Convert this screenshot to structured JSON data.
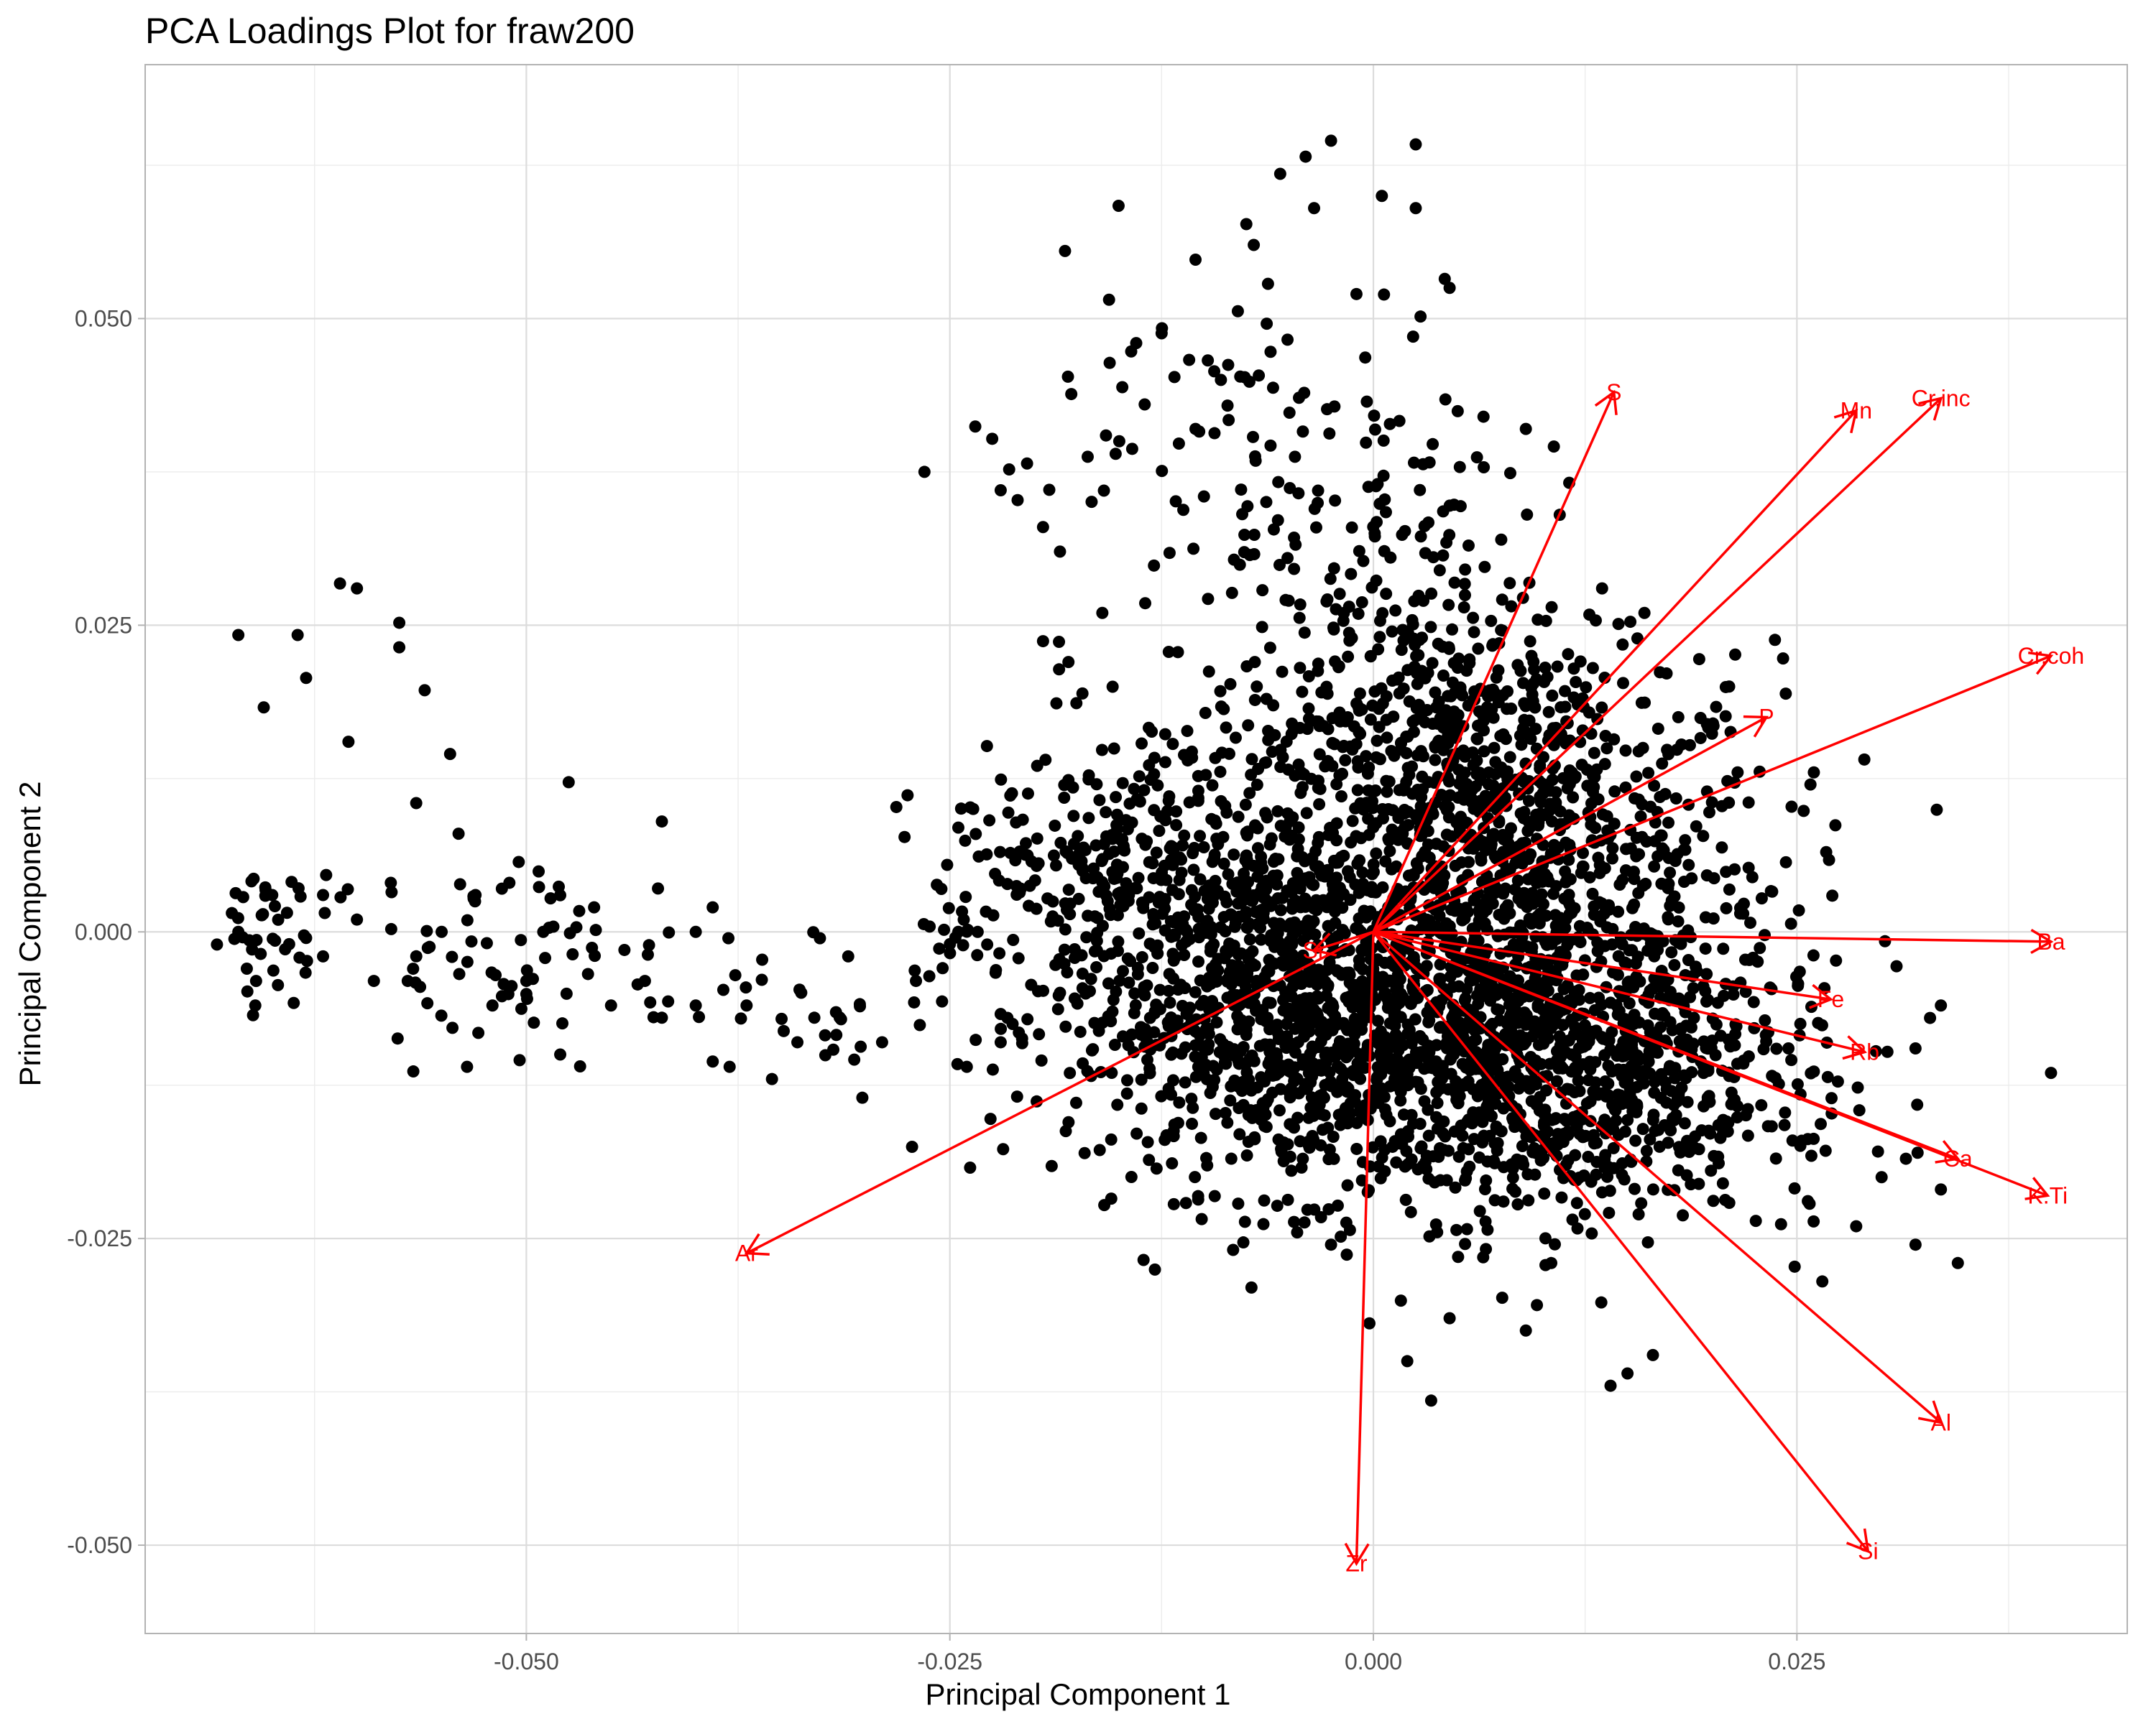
{
  "chart_data": {
    "type": "scatter",
    "title": "PCA Loadings Plot for fraw200",
    "xlabel": "Principal Component 1",
    "ylabel": "Principal Component 2",
    "xlim": [
      -0.0725,
      0.0445
    ],
    "ylim": [
      -0.0572,
      0.0707
    ],
    "x_ticks": [
      -0.05,
      -0.025,
      0.0,
      0.025
    ],
    "x_tick_labels": [
      "-0.050",
      "-0.025",
      "0.000",
      "0.025"
    ],
    "y_ticks": [
      -0.05,
      -0.025,
      0.0,
      0.025,
      0.05
    ],
    "y_tick_labels": [
      "-0.050",
      "-0.025",
      "0.000",
      "0.025",
      "0.050"
    ],
    "grid": true,
    "point_color": "#000000",
    "arrow_color": "#ff0000",
    "points_approx": [
      [
        -0.067,
        0.0242
      ],
      [
        -0.0635,
        0.0242
      ],
      [
        -0.0655,
        0.0183
      ],
      [
        -0.063,
        0.0207
      ],
      [
        -0.061,
        0.0284
      ],
      [
        -0.06,
        0.028
      ],
      [
        -0.0575,
        0.0252
      ],
      [
        -0.0575,
        0.0232
      ],
      [
        -0.056,
        0.0197
      ],
      [
        -0.0545,
        0.0145
      ],
      [
        -0.0605,
        0.0155
      ],
      [
        -0.0565,
        0.0105
      ],
      [
        -0.0475,
        0.0122
      ],
      [
        -0.042,
        0.009
      ],
      [
        -0.0265,
        0.0375
      ],
      [
        -0.0235,
        0.0412
      ],
      [
        -0.0225,
        0.0402
      ],
      [
        -0.0215,
        0.0377
      ],
      [
        -0.022,
        0.036
      ],
      [
        -0.021,
        0.0352
      ],
      [
        -0.0195,
        0.033
      ],
      [
        -0.0185,
        0.031
      ],
      [
        -0.014,
        0.048
      ],
      [
        -0.0125,
        0.0488
      ],
      [
        -0.0105,
        0.0548
      ],
      [
        -0.0075,
        0.0577
      ],
      [
        -0.0055,
        0.0618
      ],
      [
        -0.004,
        0.0632
      ],
      [
        -0.0025,
        0.0645
      ],
      [
        -0.0035,
        0.059
      ],
      [
        0.0005,
        0.06
      ],
      [
        0.0025,
        0.0642
      ],
      [
        0.0045,
        0.0525
      ],
      [
        0.0025,
        0.059
      ],
      [
        -0.001,
        0.052
      ],
      [
        -0.008,
        0.0506
      ],
      [
        -0.0135,
        0.043
      ],
      [
        -0.015,
        0.04
      ],
      [
        -0.0105,
        0.041
      ],
      [
        -0.009,
        0.045
      ],
      [
        -0.0195,
        0.0237
      ],
      [
        -0.018,
        0.022
      ],
      [
        -0.016,
        0.026
      ],
      [
        -0.0245,
        0.0085
      ],
      [
        -0.0255,
        0.0035
      ],
      [
        -0.025,
        -0.001
      ],
      [
        -0.024,
        -0.011
      ],
      [
        -0.022,
        -0.009
      ],
      [
        -0.038,
        -0.011
      ],
      [
        -0.0355,
        -0.012
      ],
      [
        -0.029,
        -0.009
      ],
      [
        -0.031,
        -0.002
      ],
      [
        -0.039,
        0.002
      ],
      [
        -0.04,
        -0.006
      ],
      [
        -0.042,
        -0.007
      ],
      [
        -0.045,
        -0.006
      ],
      [
        -0.048,
        -0.01
      ],
      [
        -0.05,
        -0.004
      ],
      [
        -0.052,
        -0.006
      ],
      [
        -0.0535,
        -0.011
      ],
      [
        -0.054,
        0.008
      ],
      [
        -0.053,
        0.003
      ],
      [
        -0.055,
        0.0
      ],
      [
        -0.058,
        0.004
      ],
      [
        -0.06,
        0.001
      ],
      [
        -0.062,
        0.003
      ],
      [
        -0.064,
        -0.001
      ],
      [
        -0.066,
        -0.006
      ],
      [
        -0.067,
        0.0
      ],
      [
        -0.0665,
        -0.003
      ],
      [
        -0.065,
        0.003
      ],
      [
        -0.063,
        -0.0005
      ],
      [
        -0.062,
        -0.002
      ],
      [
        -0.059,
        -0.004
      ],
      [
        -0.057,
        -0.004
      ],
      [
        -0.051,
        0.004
      ],
      [
        -0.049,
        0.0
      ],
      [
        -0.046,
        0.002
      ],
      [
        -0.043,
        -0.004
      ],
      [
        -0.04,
        0.0
      ],
      [
        -0.037,
        -0.006
      ],
      [
        -0.033,
        -0.007
      ],
      [
        -0.034,
        -0.009
      ],
      [
        -0.027,
        -0.004
      ],
      [
        -0.0245,
        0.0
      ],
      [
        0.014,
        -0.037
      ],
      [
        0.0165,
        -0.0345
      ],
      [
        0.015,
        -0.036
      ],
      [
        0.009,
        -0.0325
      ],
      [
        0.0045,
        -0.0315
      ],
      [
        0.002,
        -0.035
      ],
      [
        -0.0025,
        -0.0255
      ],
      [
        -0.0045,
        -0.0245
      ],
      [
        0.005,
        -0.0265
      ],
      [
        0.0105,
        -0.027
      ],
      [
        0.0335,
        -0.021
      ],
      [
        0.032,
        -0.0255
      ],
      [
        0.03,
        -0.02
      ],
      [
        0.0265,
        -0.0285
      ],
      [
        0.0285,
        -0.024
      ],
      [
        0.0345,
        -0.027
      ],
      [
        0.04,
        -0.0115
      ],
      [
        0.0335,
        -0.006
      ],
      [
        0.032,
        -0.0095
      ],
      [
        0.0245,
        -0.0095
      ],
      [
        0.021,
        0.02
      ],
      [
        0.0215,
        0.013
      ],
      [
        0.018,
        0.0175
      ],
      [
        0.026,
        0.013
      ],
      [
        0.0135,
        0.028
      ],
      [
        0.016,
        0.026
      ],
      [
        0.011,
        0.034
      ],
      [
        0.009,
        0.041
      ],
      [
        0.0065,
        0.042
      ],
      [
        -0.005,
        0.027
      ],
      [
        -0.007,
        0.022
      ]
    ],
    "point_clusters_approx": [
      {
        "x": 0.008,
        "y": 0.002,
        "spread_x": 0.008,
        "spread_y": 0.01,
        "count": 1000
      },
      {
        "x": -0.004,
        "y": -0.007,
        "spread_x": 0.007,
        "spread_y": 0.007,
        "count": 900
      },
      {
        "x": 0.009,
        "y": -0.012,
        "spread_x": 0.007,
        "spread_y": 0.006,
        "count": 650
      },
      {
        "x": 0.005,
        "y": 0.015,
        "spread_x": 0.005,
        "spread_y": 0.007,
        "count": 350
      },
      {
        "x": -0.009,
        "y": 0.005,
        "spread_x": 0.006,
        "spread_y": 0.007,
        "count": 300
      },
      {
        "x": -0.002,
        "y": 0.032,
        "spread_x": 0.006,
        "spread_y": 0.009,
        "count": 160
      },
      {
        "x": -0.018,
        "y": 0.003,
        "spread_x": 0.0045,
        "spread_y": 0.006,
        "count": 180
      },
      {
        "x": 0.02,
        "y": -0.01,
        "spread_x": 0.005,
        "spread_y": 0.006,
        "count": 140
      },
      {
        "x": -0.05,
        "y": -0.002,
        "spread_x": 0.005,
        "spread_y": 0.004,
        "count": 70
      },
      {
        "x": -0.065,
        "y": 0.0,
        "spread_x": 0.0018,
        "spread_y": 0.0025,
        "count": 40
      },
      {
        "x": -0.033,
        "y": -0.006,
        "spread_x": 0.004,
        "spread_y": 0.003,
        "count": 30
      },
      {
        "x": -0.01,
        "y": 0.045,
        "spread_x": 0.006,
        "spread_y": 0.006,
        "count": 30
      }
    ],
    "loadings": [
      {
        "label": "S",
        "x": 0.0142,
        "y": 0.044
      },
      {
        "label": "Mn",
        "x": 0.0285,
        "y": 0.0425
      },
      {
        "label": "Cr.inc",
        "x": 0.0335,
        "y": 0.0435
      },
      {
        "label": "Cr.coh",
        "x": 0.04,
        "y": 0.0225
      },
      {
        "label": "P",
        "x": 0.0232,
        "y": 0.0175
      },
      {
        "label": "Ba",
        "x": 0.04,
        "y": -0.0008
      },
      {
        "label": "Fe",
        "x": 0.027,
        "y": -0.0055
      },
      {
        "label": "Rb",
        "x": 0.029,
        "y": -0.0098
      },
      {
        "label": "Ca",
        "x": 0.0345,
        "y": -0.0185
      },
      {
        "label": "K.Ti",
        "x": 0.0398,
        "y": -0.0215
      },
      {
        "label": "Al",
        "x": 0.0335,
        "y": -0.04
      },
      {
        "label": "Si",
        "x": 0.0292,
        "y": -0.0505
      },
      {
        "label": "Zr",
        "x": -0.001,
        "y": -0.0515
      },
      {
        "label": "Ar",
        "x": -0.037,
        "y": -0.0262
      },
      {
        "label": "Sr",
        "x": -0.0035,
        "y": -0.0015
      }
    ]
  }
}
